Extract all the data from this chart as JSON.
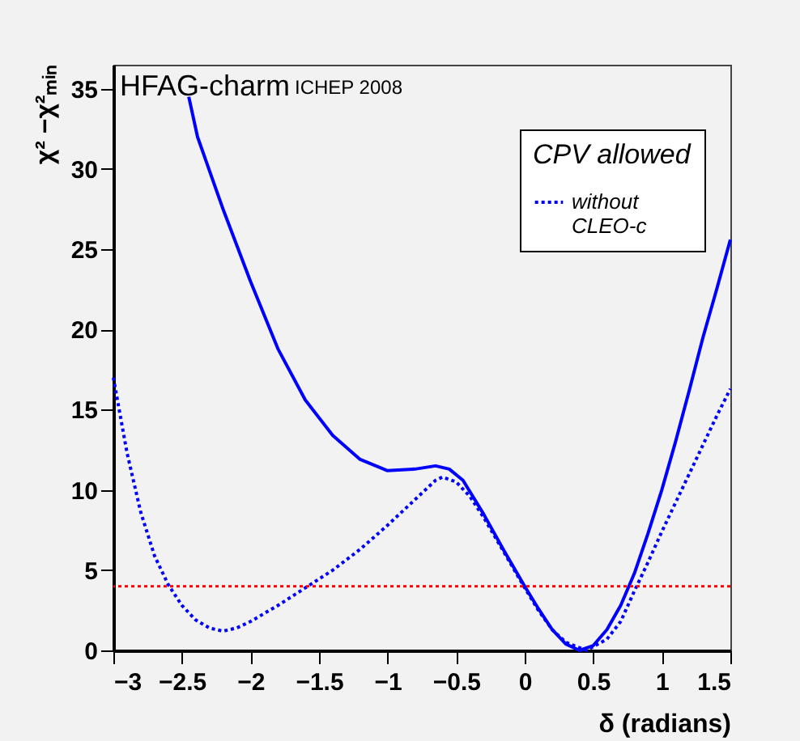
{
  "chart_data": {
    "type": "line",
    "xlabel": "δ (radians)",
    "ylabel": "χ² −χ²ₘᵢₙ",
    "legend_title": "CPV allowed",
    "legend": "top right",
    "annotations": [
      "HFAG-charm",
      "ICHEP 2008"
    ],
    "xlim": [
      -3,
      1.5
    ],
    "ylim": [
      0,
      36.5
    ],
    "xticks": [
      -3,
      -2.5,
      -2,
      -1.5,
      -1,
      -0.5,
      0,
      0.5,
      1,
      1.5
    ],
    "yticks": [
      0,
      5,
      10,
      15,
      20,
      25,
      30,
      35
    ],
    "ref_lines": [
      {
        "axis": "y",
        "value": 4,
        "color": "#ff0000",
        "line_style": "dotted"
      }
    ],
    "series": [
      {
        "color": "#0000ff",
        "line_style": "solid",
        "x": [
          -2.45,
          -2.386,
          -2.2,
          -2.0,
          -1.8,
          -1.6,
          -1.4,
          -1.2,
          -1.0,
          -0.8,
          -0.65,
          -0.55,
          -0.45,
          -0.3,
          -0.15,
          0,
          0.1,
          0.2,
          0.3,
          0.4,
          0.5,
          0.6,
          0.7,
          0.8,
          0.9,
          1.0,
          1.1,
          1.2,
          1.3,
          1.4,
          1.5
        ],
        "values": [
          34.5,
          32,
          27.5,
          23,
          18.8,
          15.6,
          13.4,
          11.9,
          11.2,
          11.3,
          11.5,
          11.3,
          10.6,
          8.5,
          6.2,
          4,
          2.6,
          1.3,
          0.4,
          0,
          0.3,
          1.3,
          2.8,
          4.8,
          7.3,
          10,
          13,
          16.2,
          19.5,
          22.5,
          25.6
        ]
      },
      {
        "name": "without CLEO-c",
        "color": "#0000ff",
        "line_style": "dotted",
        "x": [
          -3,
          -2.9,
          -2.8,
          -2.7,
          -2.6,
          -2.5,
          -2.4,
          -2.3,
          -2.2,
          -2.1,
          -2.0,
          -1.8,
          -1.6,
          -1.4,
          -1.2,
          -1.0,
          -0.8,
          -0.65,
          -0.6,
          -0.5,
          -0.4,
          -0.3,
          -0.15,
          0,
          0.1,
          0.2,
          0.3,
          0.45,
          0.6,
          0.7,
          0.8,
          0.9,
          1.0,
          1.1,
          1.2,
          1.3,
          1.4,
          1.5
        ],
        "values": [
          17,
          12.3,
          8.6,
          5.9,
          4.1,
          2.8,
          1.9,
          1.4,
          1.2,
          1.4,
          1.8,
          2.8,
          3.9,
          5,
          6.3,
          7.8,
          9.4,
          10.6,
          10.8,
          10.5,
          9.6,
          8.3,
          6.1,
          3.9,
          2.5,
          1.3,
          0.5,
          0,
          0.7,
          1.8,
          3.7,
          5.5,
          7.4,
          9.2,
          11,
          12.8,
          14.6,
          16.3
        ]
      }
    ]
  }
}
